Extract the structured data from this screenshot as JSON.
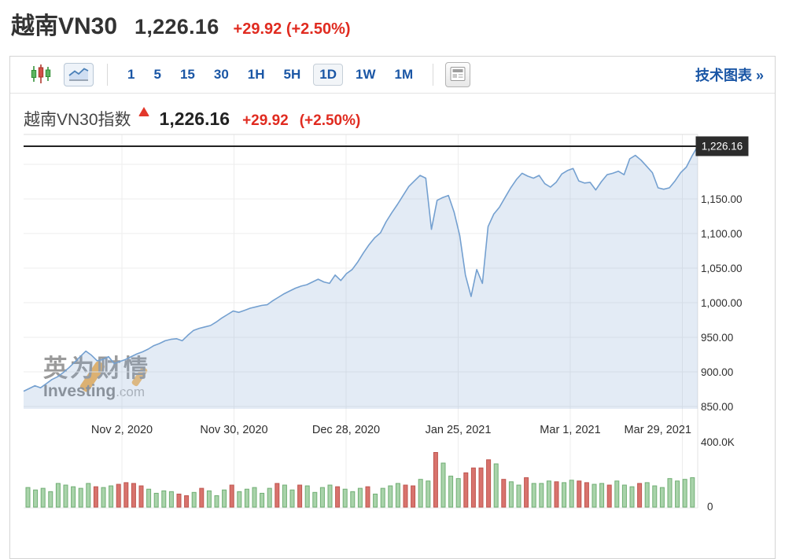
{
  "page_header": {
    "symbol": "越南VN30",
    "price": "1,226.16",
    "change": "+29.92 (+2.50%)"
  },
  "toolbar": {
    "chart_types": [
      {
        "name": "candlestick-chart",
        "selected": false
      },
      {
        "name": "area-chart",
        "selected": true
      }
    ],
    "intervals": [
      {
        "label": "1",
        "selected": false
      },
      {
        "label": "5",
        "selected": false
      },
      {
        "label": "15",
        "selected": false
      },
      {
        "label": "30",
        "selected": false
      },
      {
        "label": "1H",
        "selected": false
      },
      {
        "label": "5H",
        "selected": false
      },
      {
        "label": "1D",
        "selected": true
      },
      {
        "label": "1W",
        "selected": false
      },
      {
        "label": "1M",
        "selected": false
      }
    ],
    "link": "技术图表 »"
  },
  "chart_header": {
    "title": "越南VN30指数",
    "price": "1,226.16",
    "change": "+29.92",
    "change_pct": "(+2.50%)"
  },
  "watermark": {
    "cn": "英为财情",
    "en": "Investing",
    "tld": ".com"
  },
  "colors": {
    "accent_red": "#e02b20",
    "link_blue": "#1a56a5",
    "line": "#74a0d0",
    "area_fill": "rgba(127,163,209,0.22)",
    "grid": "#ededed",
    "grid_strong": "#dcdcdc",
    "up_fill": "#a9d3aa",
    "up_stroke": "#6fae73",
    "down_fill": "#d8736d",
    "down_stroke": "#bf544e",
    "tag_bg": "#2c2c2c",
    "tag_text": "#ffffff",
    "last_price_line": "#222222",
    "axis_text": "#2e2e2e"
  },
  "chart_data": {
    "type": "area",
    "title": "越南VN30指数",
    "last_price": 1226.16,
    "last_price_label": "1,226.16",
    "change": 29.92,
    "change_pct": 2.5,
    "legend_position": "none",
    "grid": true,
    "y_axis": {
      "side": "right",
      "range": [
        840,
        1240
      ],
      "grid_values": [
        1200,
        1150,
        1100,
        1050,
        1000,
        950,
        900,
        850
      ],
      "ticks": [
        {
          "label": "1,150.00",
          "value": 1150
        },
        {
          "label": "1,100.00",
          "value": 1100
        },
        {
          "label": "1,050.00",
          "value": 1050
        },
        {
          "label": "1,000.00",
          "value": 1000
        },
        {
          "label": "950.00",
          "value": 950
        },
        {
          "label": "900.00",
          "value": 900
        },
        {
          "label": "850.00",
          "value": 850
        }
      ]
    },
    "x_axis": {
      "ticks": [
        "Nov 2, 2020",
        "Nov 30, 2020",
        "Dec 28, 2020",
        "Jan 25, 2021",
        "Mar 1, 2021",
        "Mar 29, 2021"
      ]
    },
    "volume_axis": {
      "top_label": "400.0K",
      "bottom_label": "0",
      "max_thousands": 400
    },
    "prices": [
      872,
      876,
      880,
      877,
      883,
      889,
      893,
      899,
      906,
      914,
      922,
      930,
      924,
      916,
      918,
      922,
      912,
      915,
      918,
      922,
      926,
      929,
      933,
      938,
      941,
      945,
      947,
      948,
      945,
      953,
      960,
      963,
      965,
      967,
      972,
      978,
      983,
      988,
      986,
      989,
      992,
      994,
      996,
      997,
      1003,
      1008,
      1013,
      1017,
      1021,
      1024,
      1026,
      1030,
      1034,
      1030,
      1028,
      1040,
      1032,
      1042,
      1048,
      1059,
      1072,
      1084,
      1094,
      1101,
      1117,
      1130,
      1142,
      1155,
      1168,
      1176,
      1184,
      1180,
      1106,
      1148,
      1152,
      1155,
      1131,
      1097,
      1040,
      1009,
      1048,
      1028,
      1110,
      1128,
      1138,
      1152,
      1166,
      1178,
      1187,
      1183,
      1180,
      1184,
      1172,
      1167,
      1174,
      1186,
      1191,
      1194,
      1176,
      1173,
      1174,
      1163,
      1175,
      1185,
      1187,
      1190,
      1185,
      1208,
      1213,
      1206,
      1197,
      1188,
      1166,
      1164,
      1166,
      1176,
      1188,
      1196,
      1212,
      1226.16
    ],
    "volumes_thousands": [
      120,
      105,
      115,
      95,
      145,
      135,
      125,
      115,
      145,
      125,
      120,
      130,
      140,
      150,
      145,
      130,
      110,
      85,
      100,
      95,
      80,
      70,
      90,
      115,
      100,
      70,
      105,
      135,
      95,
      110,
      120,
      85,
      115,
      145,
      135,
      105,
      135,
      130,
      90,
      120,
      135,
      125,
      110,
      95,
      115,
      125,
      80,
      115,
      130,
      145,
      135,
      130,
      170,
      160,
      335,
      270,
      190,
      175,
      210,
      240,
      240,
      290,
      265,
      170,
      155,
      135,
      180,
      145,
      145,
      160,
      155,
      150,
      165,
      160,
      150,
      140,
      145,
      135,
      160,
      135,
      125,
      145,
      150,
      130,
      120,
      175,
      160,
      170,
      180
    ],
    "volume_dirs": [
      "u",
      "u",
      "u",
      "u",
      "u",
      "u",
      "u",
      "u",
      "u",
      "d",
      "u",
      "u",
      "d",
      "d",
      "d",
      "d",
      "u",
      "u",
      "u",
      "u",
      "d",
      "d",
      "u",
      "d",
      "u",
      "u",
      "u",
      "d",
      "u",
      "u",
      "u",
      "u",
      "u",
      "d",
      "u",
      "u",
      "d",
      "u",
      "u",
      "u",
      "u",
      "d",
      "u",
      "u",
      "u",
      "d",
      "u",
      "u",
      "u",
      "u",
      "d",
      "d",
      "u",
      "u",
      "d",
      "u",
      "u",
      "u",
      "d",
      "d",
      "d",
      "d",
      "u",
      "d",
      "u",
      "u",
      "d",
      "u",
      "u",
      "u",
      "d",
      "u",
      "u",
      "d",
      "d",
      "u",
      "u",
      "d",
      "u",
      "u",
      "u",
      "d",
      "u",
      "u",
      "u",
      "u",
      "u",
      "u",
      "u"
    ]
  }
}
